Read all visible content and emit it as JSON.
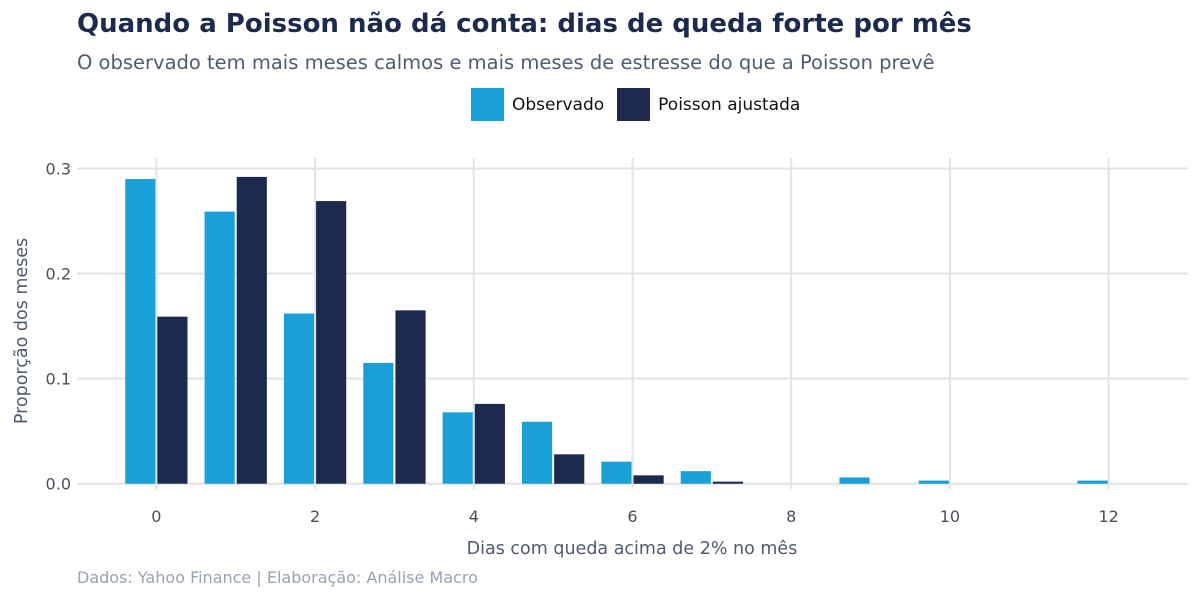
{
  "chart_data": {
    "type": "bar",
    "title": "Quando a Poisson não dá conta: dias de queda forte por mês",
    "subtitle": "O observado tem mais meses calmos e mais meses de estresse do que a Poisson prevê",
    "xlabel": "Dias com queda acima de 2% no mês",
    "ylabel": "Proporção dos meses",
    "source": "Dados: Yahoo Finance | Elaboração: Análise Macro",
    "xlim": [
      -1,
      13
    ],
    "ylim": [
      -0.005,
      0.31
    ],
    "x_ticks": [
      0,
      2,
      4,
      6,
      8,
      10,
      12
    ],
    "y_ticks": [
      0.0,
      0.1,
      0.2,
      0.3
    ],
    "y_tick_labels": [
      "0.0",
      "0.1",
      "0.2",
      "0.3"
    ],
    "grid": true,
    "legend_position": "top",
    "x": [
      0,
      1,
      2,
      3,
      4,
      5,
      6,
      7,
      8,
      9,
      10,
      11,
      12
    ],
    "series": [
      {
        "name": "Observado",
        "color": "#1aa0d8",
        "values": [
          0.29,
          0.259,
          0.162,
          0.115,
          0.068,
          0.059,
          0.021,
          0.012,
          0.0,
          0.006,
          0.003,
          0.0,
          0.003
        ]
      },
      {
        "name": "Poisson ajustada",
        "color": "#1c2b4d",
        "values": [
          0.159,
          0.292,
          0.269,
          0.165,
          0.076,
          0.028,
          0.008,
          0.002,
          0.0,
          0.0,
          0.0,
          0.0,
          0.0
        ]
      }
    ]
  }
}
